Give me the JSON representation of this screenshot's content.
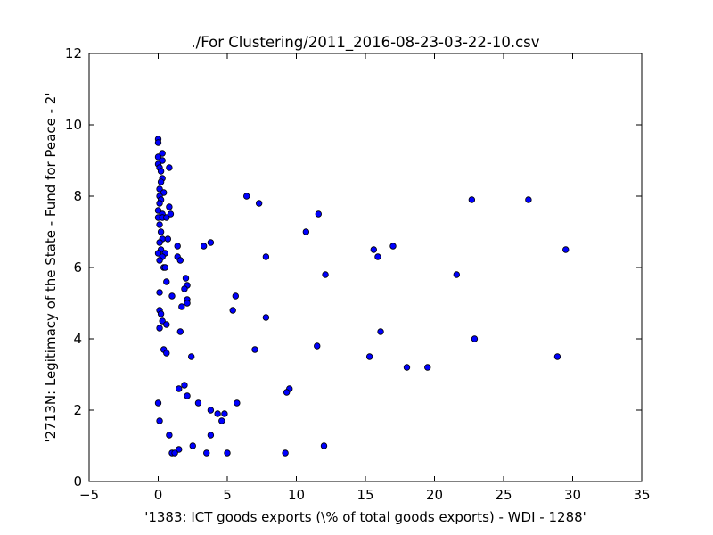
{
  "chart_data": {
    "type": "scatter",
    "title": "./For Clustering/2011_2016-08-23-03-22-10.csv",
    "xlabel": "'1383: ICT goods exports  (\\% of total goods exports) - WDI - 1288'",
    "ylabel": "'2713N: Legitimacy of the State - Fund for Peace - 2'",
    "xlim": [
      -5,
      35
    ],
    "ylim": [
      0,
      12
    ],
    "xticks": [
      -5,
      0,
      5,
      10,
      15,
      20,
      25,
      30,
      35
    ],
    "yticks": [
      0,
      2,
      4,
      6,
      8,
      10,
      12
    ],
    "grid": false,
    "marker_color": "#0000ff",
    "marker_edge_color": "#000000",
    "points": [
      [
        0.0,
        9.6
      ],
      [
        0.0,
        9.5
      ],
      [
        0.3,
        9.2
      ],
      [
        0.0,
        9.1
      ],
      [
        0.3,
        9.0
      ],
      [
        0.0,
        8.9
      ],
      [
        0.1,
        8.8
      ],
      [
        0.8,
        8.8
      ],
      [
        0.2,
        8.7
      ],
      [
        0.3,
        8.5
      ],
      [
        0.2,
        8.4
      ],
      [
        0.1,
        8.2
      ],
      [
        0.4,
        8.1
      ],
      [
        0.1,
        8.0
      ],
      [
        0.2,
        7.9
      ],
      [
        0.1,
        7.8
      ],
      [
        0.8,
        7.7
      ],
      [
        0.0,
        7.6
      ],
      [
        0.3,
        7.5
      ],
      [
        0.0,
        7.4
      ],
      [
        0.3,
        7.4
      ],
      [
        0.6,
        7.4
      ],
      [
        0.9,
        7.5
      ],
      [
        0.1,
        7.2
      ],
      [
        0.2,
        7.0
      ],
      [
        0.3,
        6.8
      ],
      [
        0.7,
        6.8
      ],
      [
        0.1,
        6.7
      ],
      [
        0.2,
        6.5
      ],
      [
        0.5,
        6.4
      ],
      [
        0.0,
        6.4
      ],
      [
        0.3,
        6.3
      ],
      [
        0.1,
        6.2
      ],
      [
        0.4,
        6.0
      ],
      [
        0.5,
        6.0
      ],
      [
        1.4,
        6.6
      ],
      [
        1.4,
        6.3
      ],
      [
        1.6,
        6.2
      ],
      [
        0.6,
        5.6
      ],
      [
        0.1,
        5.3
      ],
      [
        1.0,
        5.2
      ],
      [
        2.0,
        5.7
      ],
      [
        2.1,
        5.5
      ],
      [
        1.9,
        5.4
      ],
      [
        2.1,
        5.1
      ],
      [
        2.1,
        5.0
      ],
      [
        1.7,
        4.9
      ],
      [
        0.1,
        4.8
      ],
      [
        0.2,
        4.7
      ],
      [
        0.3,
        4.5
      ],
      [
        0.6,
        4.4
      ],
      [
        0.1,
        4.3
      ],
      [
        1.6,
        4.2
      ],
      [
        0.4,
        3.7
      ],
      [
        0.6,
        3.6
      ],
      [
        2.4,
        3.5
      ],
      [
        1.9,
        2.7
      ],
      [
        1.5,
        2.6
      ],
      [
        2.1,
        2.4
      ],
      [
        2.9,
        2.2
      ],
      [
        0.0,
        2.2
      ],
      [
        3.8,
        2.0
      ],
      [
        4.3,
        1.9
      ],
      [
        4.8,
        1.9
      ],
      [
        4.6,
        1.7
      ],
      [
        0.1,
        1.7
      ],
      [
        0.8,
        1.3
      ],
      [
        3.8,
        1.3
      ],
      [
        2.5,
        1.0
      ],
      [
        1.5,
        0.9
      ],
      [
        1.0,
        0.8
      ],
      [
        1.2,
        0.8
      ],
      [
        3.5,
        0.8
      ],
      [
        5.0,
        0.8
      ],
      [
        9.2,
        0.8
      ],
      [
        12.0,
        1.0
      ],
      [
        3.3,
        6.6
      ],
      [
        3.8,
        6.7
      ],
      [
        6.4,
        8.0
      ],
      [
        7.3,
        7.8
      ],
      [
        7.8,
        6.3
      ],
      [
        5.6,
        5.2
      ],
      [
        5.4,
        4.8
      ],
      [
        7.8,
        4.6
      ],
      [
        7.0,
        3.7
      ],
      [
        5.7,
        2.2
      ],
      [
        9.5,
        2.6
      ],
      [
        9.3,
        2.5
      ],
      [
        10.7,
        7.0
      ],
      [
        11.6,
        7.5
      ],
      [
        12.1,
        5.8
      ],
      [
        11.5,
        3.8
      ],
      [
        15.6,
        6.5
      ],
      [
        15.9,
        6.3
      ],
      [
        17.0,
        6.6
      ],
      [
        16.1,
        4.2
      ],
      [
        15.3,
        3.5
      ],
      [
        18.0,
        3.2
      ],
      [
        19.5,
        3.2
      ],
      [
        21.6,
        5.8
      ],
      [
        22.7,
        7.9
      ],
      [
        22.9,
        4.0
      ],
      [
        26.8,
        7.9
      ],
      [
        29.5,
        6.5
      ],
      [
        28.9,
        3.5
      ]
    ]
  }
}
